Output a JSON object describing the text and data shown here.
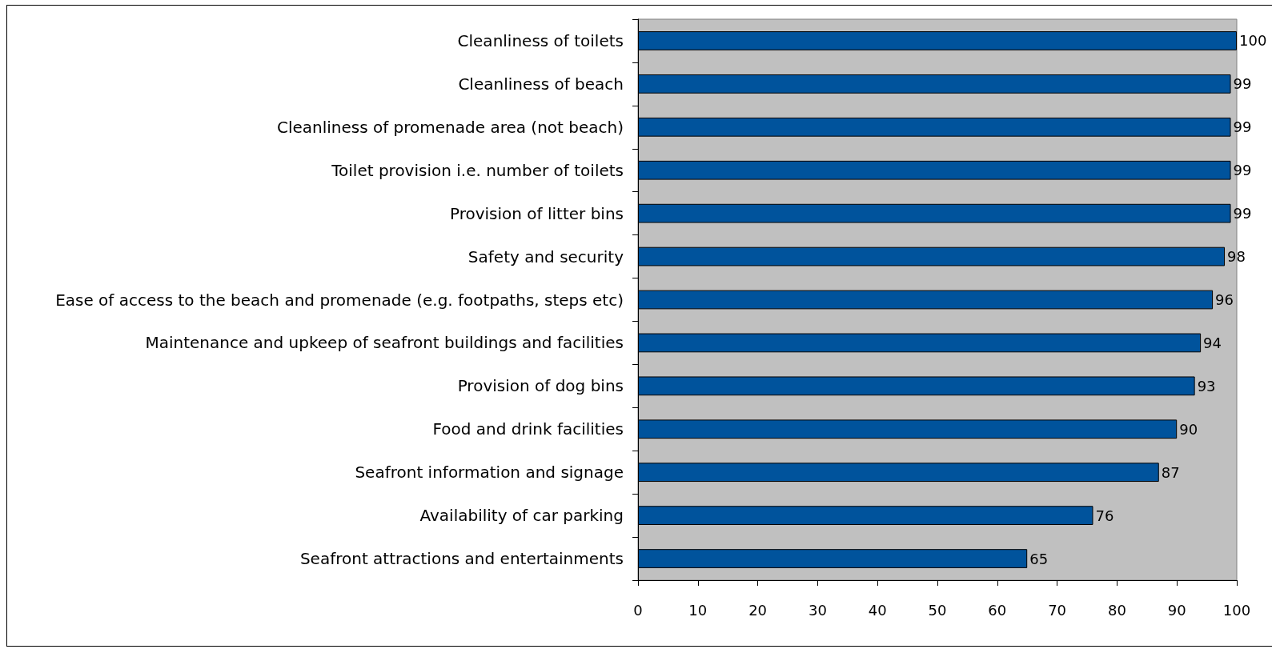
{
  "chart_data": {
    "type": "bar",
    "orientation": "horizontal",
    "categories": [
      "Cleanliness of toilets",
      "Cleanliness of beach",
      "Cleanliness of promenade area (not beach)",
      "Toilet provision i.e. number of toilets",
      "Provision of litter bins",
      "Safety and security",
      "Ease of access to the beach and promenade (e.g. footpaths, steps etc)",
      "Maintenance and upkeep of seafront buildings and facilities",
      "Provision of dog bins",
      "Food and drink facilities",
      "Seafront information and signage",
      "Availability of car parking",
      "Seafront attractions and entertainments"
    ],
    "values": [
      100,
      99,
      99,
      99,
      99,
      98,
      96,
      94,
      93,
      90,
      87,
      76,
      65
    ],
    "color": "#00539c",
    "xlim": [
      0,
      100
    ],
    "xticks": [
      0,
      10,
      20,
      30,
      40,
      50,
      60,
      70,
      80,
      90,
      100
    ],
    "data_labels": true,
    "grid": false
  }
}
